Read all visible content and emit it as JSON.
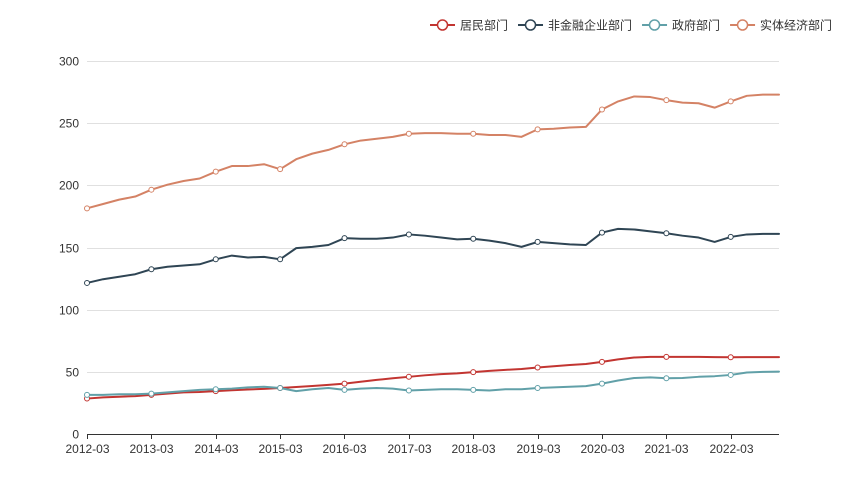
{
  "chart_data": {
    "type": "line",
    "title": "",
    "xlabel": "",
    "ylabel": "",
    "ylim": [
      0,
      300
    ],
    "yticks": [
      0,
      50,
      100,
      150,
      200,
      250,
      300
    ],
    "xticks": [
      "2012-03",
      "2013-03",
      "2014-03",
      "2015-03",
      "2016-03",
      "2017-03",
      "2018-03",
      "2019-03",
      "2020-03",
      "2021-03",
      "2022-03"
    ],
    "x": [
      "2012-03",
      "2012-06",
      "2012-09",
      "2012-12",
      "2013-03",
      "2013-06",
      "2013-09",
      "2013-12",
      "2014-03",
      "2014-06",
      "2014-09",
      "2014-12",
      "2015-03",
      "2015-06",
      "2015-09",
      "2015-12",
      "2016-03",
      "2016-06",
      "2016-09",
      "2016-12",
      "2017-03",
      "2017-06",
      "2017-09",
      "2017-12",
      "2018-03",
      "2018-06",
      "2018-09",
      "2018-12",
      "2019-03",
      "2019-06",
      "2019-09",
      "2019-12",
      "2020-03",
      "2020-06",
      "2020-09",
      "2020-12",
      "2021-03",
      "2021-06",
      "2021-09",
      "2021-12",
      "2022-03",
      "2022-06",
      "2022-09",
      "2022-12"
    ],
    "grid": true,
    "legend_position": "top-right",
    "series": [
      {
        "name": "居民部门",
        "color": "#c23531",
        "values": [
          28.5,
          29.5,
          30.0,
          30.5,
          31.5,
          32.5,
          33.5,
          33.8,
          34.5,
          35.2,
          35.8,
          36.3,
          37.0,
          37.8,
          38.6,
          39.5,
          40.5,
          42.0,
          43.5,
          44.8,
          46.0,
          47.2,
          48.2,
          48.8,
          49.8,
          50.8,
          51.6,
          52.3,
          53.5,
          54.5,
          55.5,
          56.3,
          58.0,
          60.0,
          61.5,
          62.0,
          62.0,
          62.0,
          62.0,
          61.8,
          61.7,
          61.8,
          61.8,
          61.8
        ],
        "markers": [
          true,
          false,
          false,
          false,
          true,
          false,
          false,
          false,
          true,
          false,
          false,
          false,
          true,
          false,
          false,
          false,
          true,
          false,
          false,
          false,
          true,
          false,
          false,
          false,
          true,
          false,
          false,
          false,
          true,
          false,
          false,
          false,
          true,
          false,
          false,
          false,
          true,
          false,
          false,
          false,
          true,
          false,
          false,
          false
        ]
      },
      {
        "name": "非金融企业部门",
        "color": "#2f4554",
        "values": [
          121.5,
          124.5,
          126.5,
          128.5,
          132.5,
          134.5,
          135.5,
          136.5,
          140.5,
          143.5,
          142.0,
          142.5,
          140.5,
          149.5,
          150.5,
          152.0,
          157.5,
          157.0,
          157.0,
          158.0,
          160.5,
          159.5,
          158.0,
          156.5,
          157.0,
          155.5,
          153.5,
          150.5,
          154.5,
          153.5,
          152.5,
          152.0,
          162.0,
          165.0,
          164.5,
          163.0,
          161.5,
          159.5,
          158.0,
          154.5,
          158.5,
          160.5,
          161.0,
          161.0
        ],
        "markers": [
          true,
          false,
          false,
          false,
          true,
          false,
          false,
          false,
          true,
          false,
          false,
          false,
          true,
          false,
          false,
          false,
          true,
          false,
          false,
          false,
          true,
          false,
          false,
          false,
          true,
          false,
          false,
          false,
          true,
          false,
          false,
          false,
          true,
          false,
          false,
          false,
          true,
          false,
          false,
          false,
          true,
          false,
          false,
          false
        ]
      },
      {
        "name": "政府部门",
        "color": "#61a0a8",
        "values": [
          31.5,
          31.5,
          32.0,
          32.0,
          32.5,
          33.5,
          34.5,
          35.5,
          36.0,
          36.5,
          37.5,
          38.0,
          37.0,
          34.5,
          36.0,
          37.0,
          35.5,
          36.5,
          37.0,
          36.5,
          35.0,
          35.5,
          36.0,
          36.0,
          35.5,
          35.0,
          36.0,
          36.0,
          37.0,
          37.5,
          38.0,
          38.5,
          40.5,
          43.0,
          45.0,
          45.5,
          44.8,
          45.0,
          46.0,
          46.5,
          47.5,
          49.5,
          50.0,
          50.2
        ],
        "markers": [
          true,
          false,
          false,
          false,
          true,
          false,
          false,
          false,
          true,
          false,
          false,
          false,
          true,
          false,
          false,
          false,
          true,
          false,
          false,
          false,
          true,
          false,
          false,
          false,
          true,
          false,
          false,
          false,
          true,
          false,
          false,
          false,
          true,
          false,
          false,
          false,
          true,
          false,
          false,
          false,
          true,
          false,
          false,
          false
        ]
      },
      {
        "name": "实体经济部门",
        "color": "#d48265",
        "values": [
          181.5,
          185.0,
          188.5,
          191.0,
          196.5,
          200.5,
          203.5,
          205.5,
          211.0,
          215.5,
          215.5,
          217.0,
          213.0,
          221.0,
          225.5,
          228.5,
          233.0,
          236.0,
          237.5,
          239.0,
          241.5,
          242.0,
          242.0,
          241.5,
          241.5,
          240.5,
          240.5,
          239.0,
          245.0,
          245.5,
          246.5,
          247.0,
          261.0,
          267.5,
          271.5,
          271.0,
          268.5,
          266.5,
          266.0,
          262.5,
          267.5,
          272.0,
          273.0,
          273.0
        ],
        "markers": [
          true,
          false,
          false,
          false,
          true,
          false,
          false,
          false,
          true,
          false,
          false,
          false,
          true,
          false,
          false,
          false,
          true,
          false,
          false,
          false,
          true,
          false,
          false,
          false,
          true,
          false,
          false,
          false,
          true,
          false,
          false,
          false,
          true,
          false,
          false,
          false,
          true,
          false,
          false,
          false,
          true,
          false,
          false,
          false
        ]
      }
    ]
  }
}
